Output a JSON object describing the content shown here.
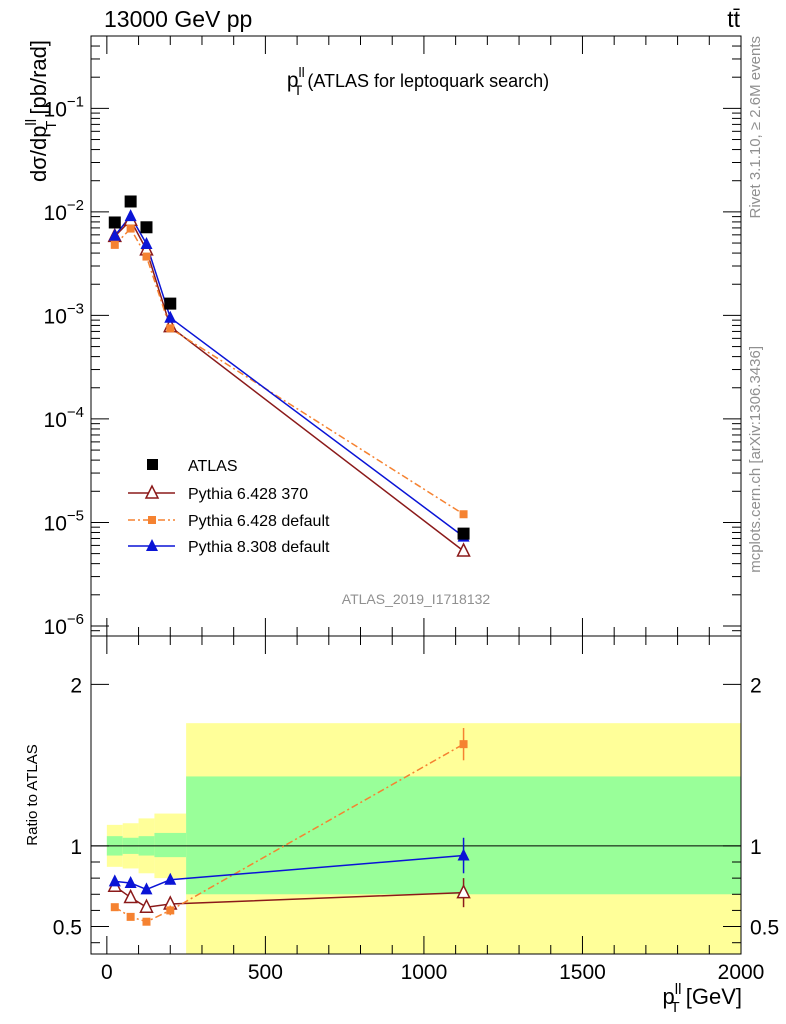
{
  "header": {
    "left_label": "13000 GeV pp",
    "right_label": "tt̄"
  },
  "side_labels": {
    "rivet": "Rivet 3.1.10, ≥ 2.6M events",
    "mcplots": "mcplots.cern.ch [arXiv:1306.3436]"
  },
  "chart_data": [
    {
      "type": "scatter",
      "title": "p",
      "title_superscript": "ll",
      "title_subscript": "T",
      "title_suffix": " (ATLAS for leptoquark search)",
      "analysis_label": "ATLAS_2019_I1718132",
      "ylabel": "dσ/dp",
      "ylabel_superscript": "ll",
      "ylabel_subscript": "T",
      "ylabel_suffix": " [pb/rad]",
      "yscale": "log",
      "xlim": [
        -50,
        2000
      ],
      "ylim": [
        8e-07,
        0.5
      ],
      "ytick_labels": [
        {
          "value": 0.1,
          "base": "10",
          "exp": "−1"
        },
        {
          "value": 0.01,
          "base": "10",
          "exp": "−2"
        },
        {
          "value": 0.001,
          "base": "10",
          "exp": "−3"
        },
        {
          "value": 0.0001,
          "base": "10",
          "exp": "−4"
        },
        {
          "value": 1e-05,
          "base": "10",
          "exp": "−5"
        },
        {
          "value": 1e-06,
          "base": "10",
          "exp": "−6"
        }
      ],
      "legend_position": "bottom-left",
      "series": [
        {
          "name": "ATLAS",
          "marker": "square",
          "color": "#000000",
          "line": "none",
          "x": [
            25,
            75,
            125,
            200,
            1125
          ],
          "y": [
            0.0079,
            0.0126,
            0.0071,
            0.0013,
            7.8e-06
          ]
        },
        {
          "name": "Pythia 6.428 370",
          "marker": "triangle-open",
          "color": "#8b1a1a",
          "line": "solid",
          "x": [
            25,
            75,
            125,
            200,
            1125
          ],
          "y": [
            0.0058,
            0.0083,
            0.0043,
            0.00078,
            5.3e-06
          ]
        },
        {
          "name": "Pythia 6.428 default",
          "marker": "square-small",
          "color": "#f58231",
          "line": "dashdot",
          "x": [
            25,
            75,
            125,
            200,
            1125
          ],
          "y": [
            0.0048,
            0.0069,
            0.0037,
            0.00075,
            1.2e-05
          ]
        },
        {
          "name": "Pythia 8.308 default",
          "marker": "triangle",
          "color": "#0a14d6",
          "line": "solid",
          "x": [
            25,
            75,
            125,
            200,
            1125
          ],
          "y": [
            0.0059,
            0.0091,
            0.0049,
            0.00095,
            7.3e-06
          ]
        }
      ]
    },
    {
      "type": "scatter",
      "ylabel": "Ratio to ATLAS",
      "xlabel": "p",
      "xlabel_superscript": "ll",
      "xlabel_subscript": "T",
      "xlabel_suffix": " [GeV]",
      "xlim": [
        -50,
        2000
      ],
      "ylim": [
        0.33,
        2.3
      ],
      "xticks": [
        0,
        500,
        1000,
        1500,
        2000
      ],
      "yticks": [
        0.5,
        1,
        2
      ],
      "ytick_labels": [
        "0.5",
        "1",
        "2"
      ],
      "reference_line": 1,
      "uncertainty_bands": [
        {
          "x_lo": 0,
          "x_hi": 50,
          "inner": [
            0.94,
            1.06
          ],
          "outer": [
            0.87,
            1.13
          ],
          "color_inner": "#99ff99",
          "color_outer": "#ffff99"
        },
        {
          "x_lo": 50,
          "x_hi": 100,
          "inner": [
            0.95,
            1.05
          ],
          "outer": [
            0.86,
            1.14
          ],
          "color_inner": "#99ff99",
          "color_outer": "#ffff99"
        },
        {
          "x_lo": 100,
          "x_hi": 150,
          "inner": [
            0.94,
            1.06
          ],
          "outer": [
            0.83,
            1.17
          ],
          "color_inner": "#99ff99",
          "color_outer": "#ffff99"
        },
        {
          "x_lo": 150,
          "x_hi": 250,
          "inner": [
            0.93,
            1.08
          ],
          "outer": [
            0.8,
            1.2
          ],
          "color_inner": "#99ff99",
          "color_outer": "#ffff99"
        },
        {
          "x_lo": 250,
          "x_hi": 2000,
          "inner": [
            0.7,
            1.43
          ],
          "outer": [
            0.33,
            1.76
          ],
          "color_inner": "#99ff99",
          "color_outer": "#ffff99"
        }
      ],
      "series": [
        {
          "name": "Pythia 6.428 370",
          "color": "#8b1a1a",
          "marker": "triangle-open",
          "line": "solid",
          "x": [
            25,
            75,
            125,
            200,
            1125
          ],
          "y": [
            0.75,
            0.68,
            0.62,
            0.64,
            0.71
          ],
          "err": [
            0.02,
            0.02,
            0.02,
            0.03,
            0.09
          ]
        },
        {
          "name": "Pythia 6.428 default",
          "color": "#f58231",
          "marker": "square-small",
          "line": "dashdot",
          "x": [
            25,
            75,
            125,
            200,
            1125
          ],
          "y": [
            0.62,
            0.56,
            0.53,
            0.6,
            1.63
          ],
          "err": [
            0.015,
            0.015,
            0.02,
            0.03,
            0.1
          ]
        },
        {
          "name": "Pythia 8.308 default",
          "color": "#0a14d6",
          "marker": "triangle",
          "line": "solid",
          "x": [
            25,
            75,
            125,
            200,
            1125
          ],
          "y": [
            0.78,
            0.77,
            0.73,
            0.79,
            0.94
          ],
          "err": [
            0.02,
            0.02,
            0.02,
            0.03,
            0.11
          ]
        }
      ]
    }
  ]
}
